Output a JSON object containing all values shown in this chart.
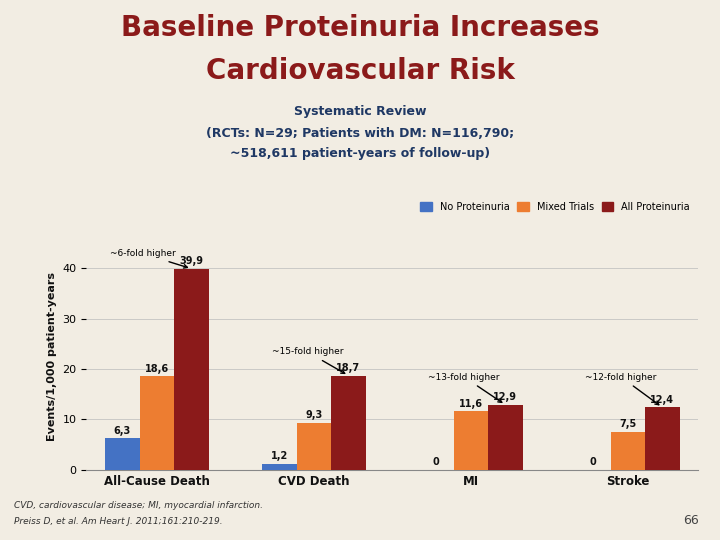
{
  "title_line1": "Baseline Proteinuria Increases",
  "title_line2": "Cardiovascular Risk",
  "subtitle_line1": "Systematic Review",
  "subtitle_line2": "(RCTs: N=29; Patients with DM: N=116,790;",
  "subtitle_line3": "~518,611 patient-years of follow-up)",
  "categories": [
    "All-Cause Death",
    "CVD Death",
    "MI",
    "Stroke"
  ],
  "series": {
    "No Proteinuria": [
      6.3,
      1.2,
      0,
      0
    ],
    "Mixed Trials": [
      18.6,
      9.3,
      11.6,
      7.5
    ],
    "All Proteinuria": [
      39.9,
      18.7,
      12.9,
      12.4
    ]
  },
  "colors": {
    "No Proteinuria": "#4472C4",
    "Mixed Trials": "#ED7D31",
    "All Proteinuria": "#8B1A1A"
  },
  "ylabel": "Events/1,000 patient-years",
  "ylim": [
    0,
    45
  ],
  "yticks": [
    0,
    10,
    20,
    30,
    40
  ],
  "background_color": "#F2EDE3",
  "title_color": "#8B1A1A",
  "subtitle_color": "#1F3864",
  "footnote1": "CVD, cardiovascular disease; MI, myocardial infarction.",
  "footnote2": "Preiss D, et al. Am Heart J. 2011;161:210-219.",
  "page_number": "66",
  "bar_width": 0.22
}
